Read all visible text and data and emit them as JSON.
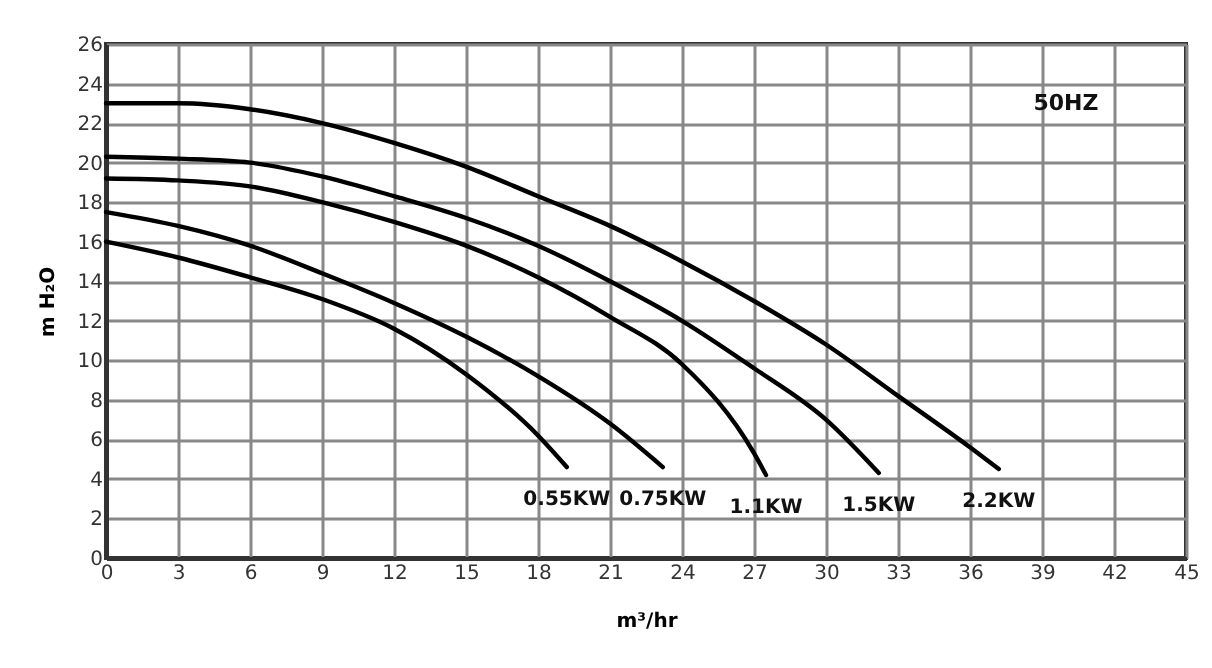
{
  "chart_data": {
    "type": "line",
    "xlabel": "m³/hr",
    "ylabel": "m H₂O",
    "xlim": [
      0,
      45
    ],
    "xticks": [
      0,
      3,
      6,
      9,
      12,
      15,
      18,
      21,
      24,
      27,
      30,
      33,
      36,
      39,
      42,
      45
    ],
    "ylim": [
      0,
      26
    ],
    "yticks": [
      0,
      2,
      4,
      6,
      8,
      10,
      12,
      14,
      16,
      18,
      20,
      22,
      24,
      26
    ],
    "grid": true,
    "legend": false,
    "marker": "none",
    "line_style": "solid",
    "annotations": [
      "50HZ"
    ],
    "series": [
      {
        "name": "0.55KW",
        "color": "#000000",
        "x": [
          0,
          3,
          6,
          9,
          12,
          15,
          18,
          19.2
        ],
        "values": [
          16,
          15.2,
          14.2,
          13.1,
          11.6,
          9.3,
          6.2,
          4.6
        ]
      },
      {
        "name": "0.75KW",
        "color": "#000000",
        "x": [
          0,
          3,
          6,
          9,
          12,
          15,
          18,
          21,
          23.2
        ],
        "values": [
          17.5,
          16.8,
          15.8,
          14.4,
          12.9,
          11.2,
          9.2,
          6.8,
          4.6
        ]
      },
      {
        "name": "1.1KW",
        "color": "#000000",
        "x": [
          0,
          3,
          6,
          9,
          12,
          15,
          18,
          21,
          24,
          27,
          27.5
        ],
        "values": [
          19.2,
          19.1,
          18.8,
          18,
          17,
          15.8,
          14.2,
          12.2,
          9.8,
          5.3,
          4.2
        ]
      },
      {
        "name": "1.5KW",
        "color": "#000000",
        "x": [
          0,
          3,
          6,
          9,
          12,
          15,
          18,
          21,
          24,
          27,
          30,
          32.2
        ],
        "values": [
          20.3,
          20.2,
          20,
          19.3,
          18.3,
          17.2,
          15.8,
          14,
          12,
          9.6,
          7,
          4.3
        ]
      },
      {
        "name": "2.2KW",
        "color": "#000000",
        "x": [
          0,
          3,
          6,
          9,
          12,
          15,
          18,
          21,
          24,
          27,
          30,
          33,
          36,
          37.2
        ],
        "values": [
          23,
          23,
          22.7,
          22,
          21,
          19.8,
          18.3,
          16.8,
          15,
          13,
          10.8,
          8.2,
          5.6,
          4.5
        ]
      }
    ]
  }
}
